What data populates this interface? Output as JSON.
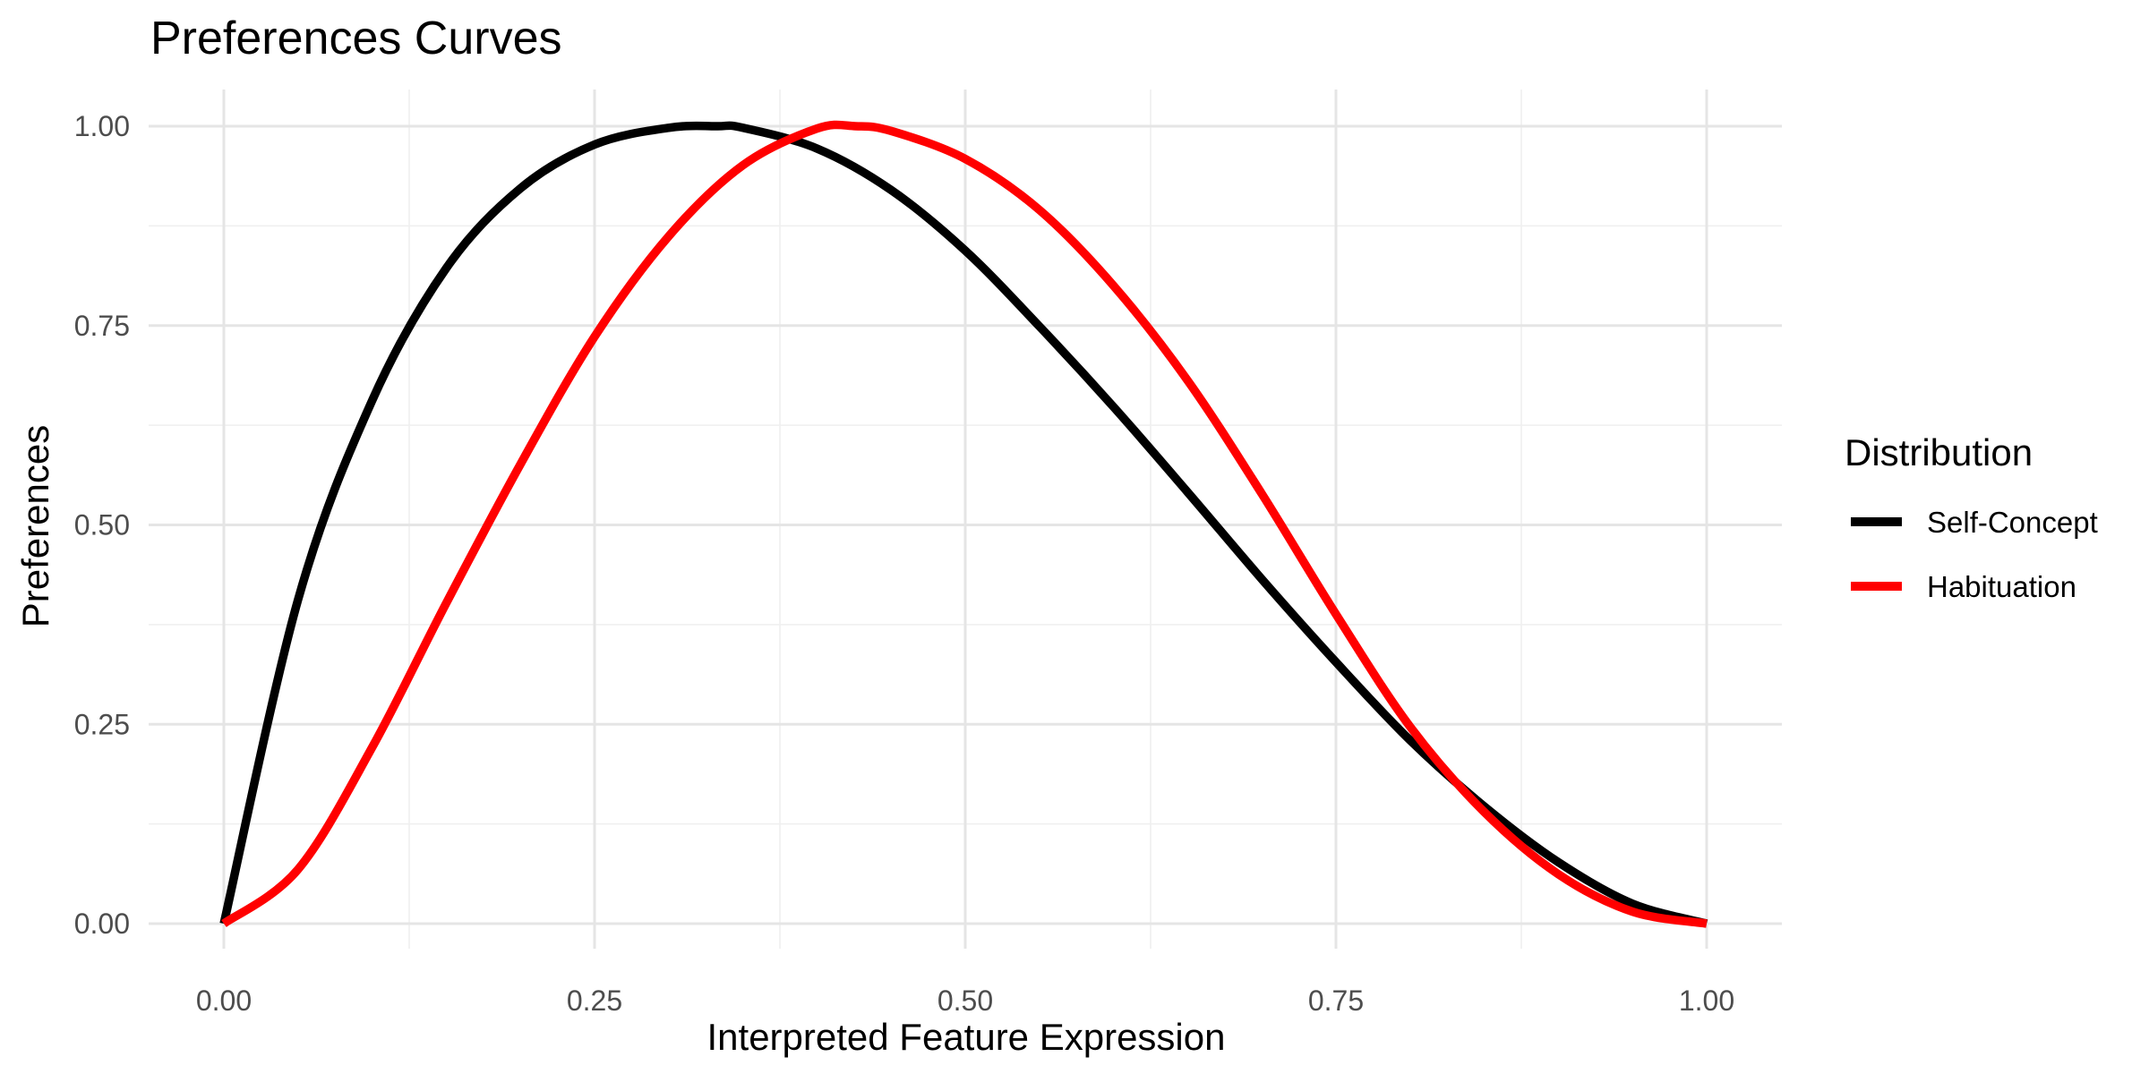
{
  "chart_data": {
    "type": "line",
    "title": "Preferences Curves",
    "xlabel": "Interpreted Feature Expression",
    "ylabel": "Preferences",
    "xlim": [
      0,
      1
    ],
    "ylim": [
      0,
      1
    ],
    "x_ticks": [
      {
        "value": 0,
        "label": "0.00"
      },
      {
        "value": 0.25,
        "label": "0.25"
      },
      {
        "value": 0.5,
        "label": "0.50"
      },
      {
        "value": 0.75,
        "label": "0.75"
      },
      {
        "value": 1,
        "label": "1.00"
      }
    ],
    "y_ticks": [
      {
        "value": 0,
        "label": "0.00"
      },
      {
        "value": 0.25,
        "label": "0.25"
      },
      {
        "value": 0.5,
        "label": "0.50"
      },
      {
        "value": 0.75,
        "label": "0.75"
      },
      {
        "value": 1,
        "label": "1.00"
      }
    ],
    "grid": true,
    "legend": {
      "title": "Distribution",
      "position": "right"
    },
    "series": [
      {
        "name": "Self-Concept",
        "color": "#000000",
        "x": [
          0,
          0.05,
          0.1,
          0.15,
          0.2,
          0.25,
          0.3,
          0.333,
          0.35,
          0.4,
          0.45,
          0.5,
          0.55,
          0.6,
          0.65,
          0.7,
          0.75,
          0.8,
          0.85,
          0.9,
          0.95,
          1
        ],
        "y": [
          0,
          0.406,
          0.656,
          0.822,
          0.922,
          0.977,
          0.998,
          1.0,
          0.998,
          0.972,
          0.92,
          0.844,
          0.749,
          0.648,
          0.541,
          0.432,
          0.328,
          0.23,
          0.147,
          0.077,
          0.025,
          0
        ]
      },
      {
        "name": "Habituation",
        "color": "#ff0000",
        "x": [
          0,
          0.05,
          0.1,
          0.15,
          0.2,
          0.25,
          0.3,
          0.35,
          0.4,
          0.426,
          0.45,
          0.5,
          0.55,
          0.6,
          0.65,
          0.7,
          0.75,
          0.8,
          0.85,
          0.9,
          0.95,
          1
        ],
        "y": [
          0,
          0.068,
          0.221,
          0.402,
          0.576,
          0.736,
          0.862,
          0.951,
          0.997,
          1.0,
          0.994,
          0.959,
          0.895,
          0.8,
          0.681,
          0.539,
          0.388,
          0.247,
          0.14,
          0.062,
          0.015,
          0
        ]
      }
    ]
  }
}
